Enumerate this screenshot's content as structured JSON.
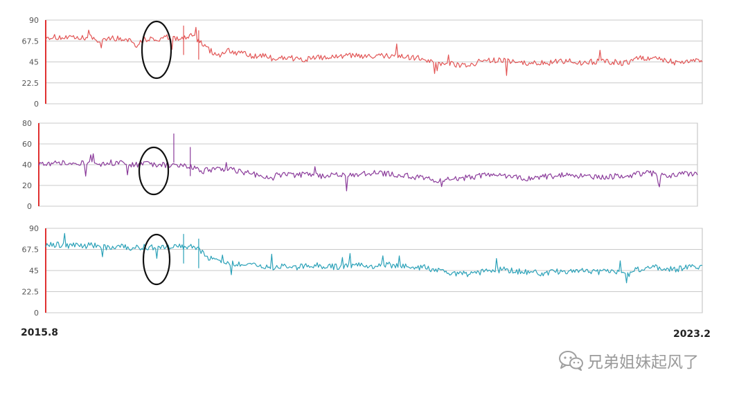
{
  "chart_data": [
    {
      "type": "line",
      "series": [
        {
          "color": "#e25555"
        }
      ],
      "ylim": [
        0,
        90
      ],
      "yticks": [
        "0",
        "22.5",
        "45",
        "67.5",
        "90"
      ],
      "x_start": "2015.8",
      "x_end": "2023.2",
      "grid": true,
      "annotation": "ellipse around the level drop",
      "points": [
        [
          0,
          72
        ],
        [
          0.03,
          71
        ],
        [
          0.05,
          70
        ],
        [
          0.07,
          72
        ],
        [
          0.08,
          66
        ],
        [
          0.09,
          71
        ],
        [
          0.11,
          70
        ],
        [
          0.13,
          69
        ],
        [
          0.14,
          62
        ],
        [
          0.15,
          70
        ],
        [
          0.17,
          69
        ],
        [
          0.19,
          72
        ],
        [
          0.2,
          71
        ],
        [
          0.21,
          70
        ],
        [
          0.22,
          73
        ],
        [
          0.23,
          70
        ],
        [
          0.245,
          60
        ],
        [
          0.255,
          55
        ],
        [
          0.265,
          52
        ],
        [
          0.275,
          58
        ],
        [
          0.285,
          56
        ],
        [
          0.3,
          54
        ],
        [
          0.315,
          50
        ],
        [
          0.33,
          52
        ],
        [
          0.35,
          48
        ],
        [
          0.37,
          50
        ],
        [
          0.39,
          47
        ],
        [
          0.41,
          49
        ],
        [
          0.43,
          50
        ],
        [
          0.45,
          51
        ],
        [
          0.47,
          52
        ],
        [
          0.49,
          50
        ],
        [
          0.51,
          52
        ],
        [
          0.53,
          51
        ],
        [
          0.55,
          50
        ],
        [
          0.57,
          49
        ],
        [
          0.6,
          44
        ],
        [
          0.62,
          43
        ],
        [
          0.64,
          41
        ],
        [
          0.66,
          45
        ],
        [
          0.68,
          47
        ],
        [
          0.7,
          46
        ],
        [
          0.72,
          44
        ],
        [
          0.74,
          43
        ],
        [
          0.76,
          44
        ],
        [
          0.78,
          45
        ],
        [
          0.8,
          46
        ],
        [
          0.82,
          44
        ],
        [
          0.84,
          46
        ],
        [
          0.86,
          45
        ],
        [
          0.88,
          44
        ],
        [
          0.9,
          48
        ],
        [
          0.92,
          50
        ],
        [
          0.94,
          48
        ],
        [
          0.96,
          44
        ],
        [
          0.98,
          46
        ],
        [
          1,
          47
        ]
      ]
    },
    {
      "type": "line",
      "series": [
        {
          "color": "#8a3a9a"
        }
      ],
      "ylim": [
        0,
        80
      ],
      "yticks": [
        "0",
        "20",
        "40",
        "60",
        "80"
      ],
      "x_start": "2015.8",
      "x_end": "2023.2",
      "grid": true,
      "annotation": "ellipse around the level drop",
      "points": [
        [
          0,
          42
        ],
        [
          0.03,
          41
        ],
        [
          0.05,
          42
        ],
        [
          0.07,
          41
        ],
        [
          0.09,
          40
        ],
        [
          0.11,
          42
        ],
        [
          0.13,
          41
        ],
        [
          0.15,
          40
        ],
        [
          0.17,
          41
        ],
        [
          0.19,
          40
        ],
        [
          0.21,
          39
        ],
        [
          0.23,
          38
        ],
        [
          0.25,
          34
        ],
        [
          0.27,
          36
        ],
        [
          0.29,
          35
        ],
        [
          0.31,
          33
        ],
        [
          0.33,
          30
        ],
        [
          0.35,
          28
        ],
        [
          0.37,
          31
        ],
        [
          0.39,
          30
        ],
        [
          0.41,
          31
        ],
        [
          0.43,
          29
        ],
        [
          0.45,
          30
        ],
        [
          0.47,
          30
        ],
        [
          0.49,
          31
        ],
        [
          0.51,
          32
        ],
        [
          0.53,
          31
        ],
        [
          0.55,
          30
        ],
        [
          0.57,
          28
        ],
        [
          0.6,
          25
        ],
        [
          0.62,
          26
        ],
        [
          0.64,
          27
        ],
        [
          0.66,
          28
        ],
        [
          0.68,
          30
        ],
        [
          0.7,
          29
        ],
        [
          0.72,
          28
        ],
        [
          0.74,
          27
        ],
        [
          0.76,
          28
        ],
        [
          0.78,
          29
        ],
        [
          0.8,
          30
        ],
        [
          0.82,
          29
        ],
        [
          0.84,
          28
        ],
        [
          0.86,
          28
        ],
        [
          0.88,
          29
        ],
        [
          0.9,
          30
        ],
        [
          0.92,
          32
        ],
        [
          0.94,
          31
        ],
        [
          0.96,
          30
        ],
        [
          0.98,
          32
        ],
        [
          1,
          31
        ]
      ]
    },
    {
      "type": "line",
      "series": [
        {
          "color": "#2aa1b8"
        }
      ],
      "ylim": [
        0,
        90
      ],
      "yticks": [
        "0",
        "22.5",
        "45",
        "67.5",
        "90"
      ],
      "x_start": "2015.8",
      "x_end": "2023.2",
      "grid": true,
      "annotation": "ellipse around the level drop",
      "points": [
        [
          0,
          73
        ],
        [
          0.03,
          72
        ],
        [
          0.05,
          71
        ],
        [
          0.07,
          72
        ],
        [
          0.09,
          70
        ],
        [
          0.11,
          71
        ],
        [
          0.13,
          69
        ],
        [
          0.15,
          70
        ],
        [
          0.17,
          69
        ],
        [
          0.19,
          70
        ],
        [
          0.21,
          71
        ],
        [
          0.23,
          70
        ],
        [
          0.245,
          60
        ],
        [
          0.255,
          56
        ],
        [
          0.265,
          54
        ],
        [
          0.28,
          53
        ],
        [
          0.3,
          52
        ],
        [
          0.32,
          50
        ],
        [
          0.34,
          48
        ],
        [
          0.36,
          49
        ],
        [
          0.38,
          48
        ],
        [
          0.4,
          51
        ],
        [
          0.42,
          50
        ],
        [
          0.44,
          49
        ],
        [
          0.46,
          50
        ],
        [
          0.48,
          51
        ],
        [
          0.5,
          50
        ],
        [
          0.52,
          51
        ],
        [
          0.54,
          50
        ],
        [
          0.56,
          49
        ],
        [
          0.58,
          48
        ],
        [
          0.6,
          44
        ],
        [
          0.62,
          42
        ],
        [
          0.64,
          41
        ],
        [
          0.66,
          43
        ],
        [
          0.68,
          45
        ],
        [
          0.7,
          46
        ],
        [
          0.72,
          44
        ],
        [
          0.74,
          43
        ],
        [
          0.76,
          42
        ],
        [
          0.78,
          44
        ],
        [
          0.8,
          45
        ],
        [
          0.82,
          44
        ],
        [
          0.84,
          43
        ],
        [
          0.86,
          44
        ],
        [
          0.88,
          43
        ],
        [
          0.9,
          46
        ],
        [
          0.92,
          49
        ],
        [
          0.94,
          47
        ],
        [
          0.96,
          46
        ],
        [
          0.98,
          50
        ],
        [
          1,
          49
        ]
      ]
    }
  ],
  "watermark": {
    "text": "兄弟姐妹起风了",
    "icon": "wechat-icon"
  }
}
